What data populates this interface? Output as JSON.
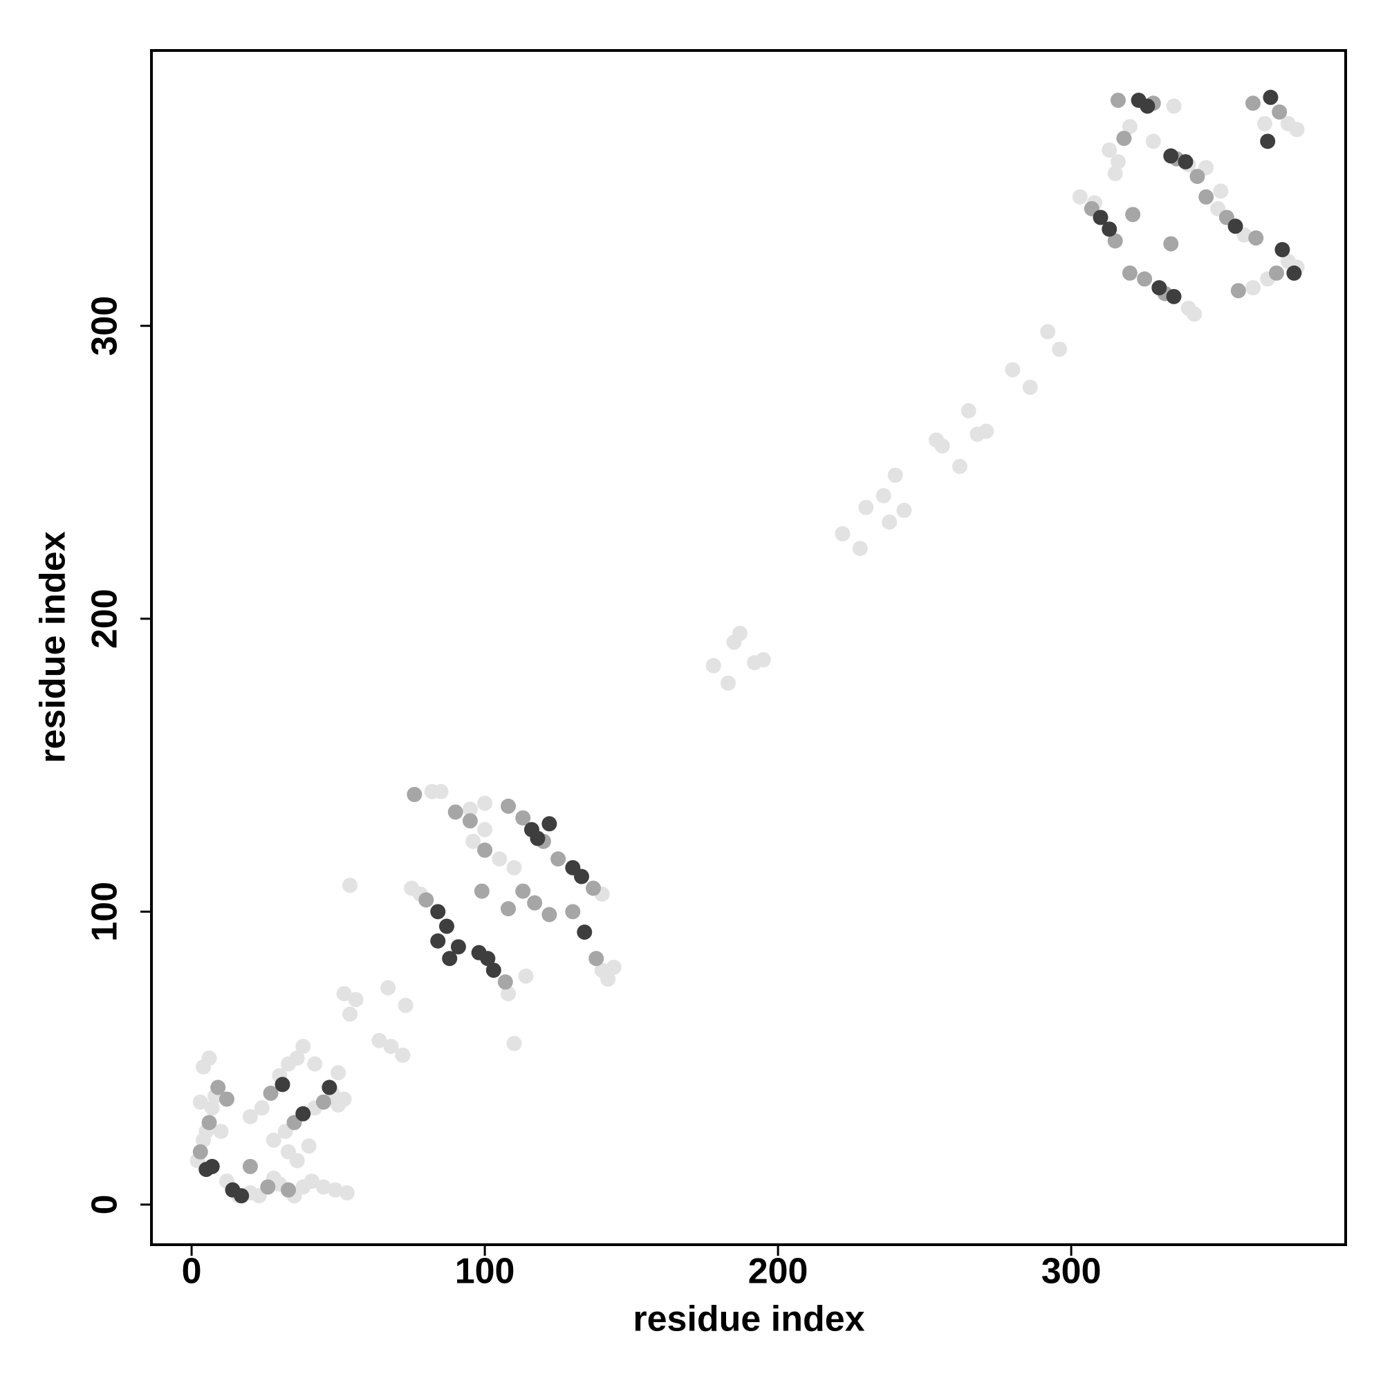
{
  "chart_data": {
    "type": "scatter",
    "xlabel": "residue index",
    "ylabel": "residue index",
    "xlim": [
      -13.7,
      393.6
    ],
    "ylim": [
      -13.7,
      394
    ],
    "xticks": [
      0,
      100,
      200,
      300
    ],
    "yticks": [
      0,
      100,
      200,
      300
    ],
    "series": [
      {
        "color": "#e2e2e2",
        "x": [
          2,
          4,
          5,
          7,
          3,
          4,
          6,
          8,
          10,
          12,
          16,
          20,
          23,
          28,
          30,
          35,
          38,
          41,
          45,
          49,
          53,
          20,
          24,
          30,
          33,
          36,
          38,
          28,
          32,
          42,
          48,
          50,
          52,
          40,
          36,
          33,
          42,
          50,
          54,
          56,
          52,
          64,
          68,
          72,
          54,
          67,
          73,
          75,
          78,
          82,
          85,
          95,
          100,
          100,
          105,
          110,
          108,
          110,
          114,
          140,
          142,
          144,
          140,
          96,
          178,
          183,
          185,
          187,
          192,
          195,
          222,
          228,
          230,
          236,
          240,
          238,
          243,
          254,
          256,
          262,
          265,
          271,
          268,
          280,
          286,
          292,
          296,
          303,
          308,
          313,
          316,
          320,
          315,
          335,
          340,
          342,
          340,
          350,
          359,
          362,
          367,
          374,
          377,
          366,
          374,
          377,
          346,
          351,
          328
        ],
        "values": [
          15,
          22,
          25,
          33,
          35,
          47,
          50,
          37,
          25,
          8,
          3,
          4,
          3,
          9,
          7,
          3,
          6,
          8,
          6,
          5,
          4,
          30,
          33,
          44,
          48,
          50,
          54,
          22,
          25,
          33,
          38,
          34,
          36,
          20,
          15,
          18,
          48,
          45,
          65,
          70,
          72,
          56,
          54,
          51,
          109,
          74,
          68,
          108,
          106,
          141,
          141,
          135,
          137,
          128,
          118,
          115,
          72,
          55,
          78,
          106,
          77,
          81,
          80,
          124,
          184,
          178,
          192,
          195,
          185,
          186,
          229,
          224,
          238,
          242,
          249,
          233,
          237,
          261,
          259,
          252,
          271,
          264,
          263,
          285,
          279,
          298,
          292,
          344,
          342,
          360,
          356,
          368,
          352,
          375,
          355,
          304,
          306,
          340,
          331,
          313,
          316,
          322,
          320,
          369,
          369,
          367,
          354,
          346,
          363
        ]
      },
      {
        "color": "#a6a6a6",
        "x": [
          3,
          6,
          9,
          12,
          20,
          26,
          33,
          27,
          35,
          45,
          80,
          76,
          90,
          95,
          108,
          113,
          120,
          125,
          137,
          100,
          113,
          117,
          122,
          130,
          138,
          99,
          108,
          107,
          316,
          328,
          318,
          336,
          343,
          346,
          353,
          363,
          370,
          320,
          325,
          332,
          307,
          315,
          362,
          371,
          357,
          334,
          321
        ],
        "values": [
          18,
          28,
          40,
          36,
          13,
          6,
          5,
          38,
          28,
          35,
          104,
          140,
          134,
          131,
          136,
          132,
          124,
          118,
          108,
          121,
          107,
          103,
          99,
          100,
          84,
          107,
          101,
          76,
          377,
          376,
          364,
          357,
          351,
          344,
          337,
          330,
          318,
          318,
          316,
          311,
          340,
          329,
          376,
          373,
          312,
          328,
          338
        ]
      },
      {
        "color": "#3e3e3e",
        "x": [
          5,
          7,
          14,
          17,
          31,
          38,
          47,
          84,
          87,
          84,
          88,
          103,
          101,
          116,
          118,
          122,
          130,
          133,
          134,
          323,
          326,
          334,
          339,
          330,
          335,
          310,
          313,
          372,
          376,
          368,
          367,
          356,
          91,
          98
        ],
        "values": [
          12,
          13,
          5,
          3,
          41,
          31,
          40,
          100,
          95,
          90,
          84,
          80,
          84,
          128,
          125,
          130,
          115,
          112,
          93,
          377,
          375,
          358,
          356,
          313,
          310,
          337,
          333,
          326,
          318,
          378,
          363,
          334,
          88,
          86
        ]
      }
    ]
  }
}
